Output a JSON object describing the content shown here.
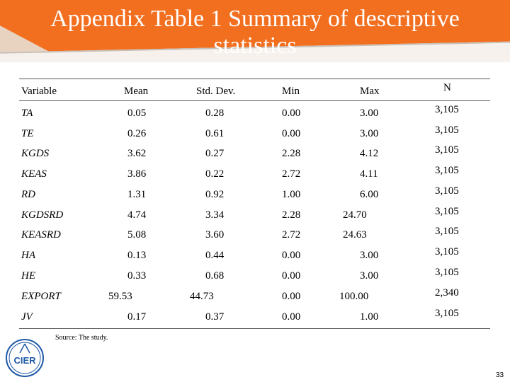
{
  "title": {
    "line1": "Appendix Table 1  Summary of descriptive",
    "line2": "statistics"
  },
  "table": {
    "headers": {
      "variable": "Variable",
      "mean": "Mean",
      "std": "Std. Dev.",
      "min": "Min",
      "max": "Max",
      "n": "N"
    },
    "rows": [
      {
        "variable": "TA",
        "mean": "0.05",
        "std": "0.28",
        "min": "0.00",
        "max": "3.00",
        "n": "3,105"
      },
      {
        "variable": "TE",
        "mean": "0.26",
        "std": "0.61",
        "min": "0.00",
        "max": "3.00",
        "n": "3,105"
      },
      {
        "variable": "KGDS",
        "mean": "3.62",
        "std": "0.27",
        "min": "2.28",
        "max": "4.12",
        "n": "3,105"
      },
      {
        "variable": "KEAS",
        "mean": "3.86",
        "std": "0.22",
        "min": "2.72",
        "max": "4.11",
        "n": "3,105"
      },
      {
        "variable": "RD",
        "mean": "1.31",
        "std": "0.92",
        "min": "1.00",
        "max": "6.00",
        "n": "3,105"
      },
      {
        "variable": "KGDSRD",
        "mean": "4.74",
        "std": "3.34",
        "min": "2.28",
        "max": "24.70",
        "n": "3,105"
      },
      {
        "variable": "KEASRD",
        "mean": "5.08",
        "std": "3.60",
        "min": "2.72",
        "max": "24.63",
        "n": "3,105"
      },
      {
        "variable": "HA",
        "mean": "0.13",
        "std": "0.44",
        "min": "0.00",
        "max": "3.00",
        "n": "3,105"
      },
      {
        "variable": "HE",
        "mean": "0.33",
        "std": "0.68",
        "min": "0.00",
        "max": "3.00",
        "n": "3,105"
      },
      {
        "variable": "EXPORT",
        "mean": "59.53",
        "std": "44.73",
        "min": "0.00",
        "max": "100.00",
        "n": "2,340"
      },
      {
        "variable": "JV",
        "mean": "0.17",
        "std": "0.37",
        "min": "0.00",
        "max": "1.00",
        "n": "3,105"
      }
    ]
  },
  "source": "Source: The study.",
  "logo": {
    "text": "CIER",
    "icon": "cier-logo-icon",
    "color": "#1e5aa8"
  },
  "page_number": "33",
  "colors": {
    "banner": "#f26f1f",
    "title_text": "#ffffff"
  }
}
